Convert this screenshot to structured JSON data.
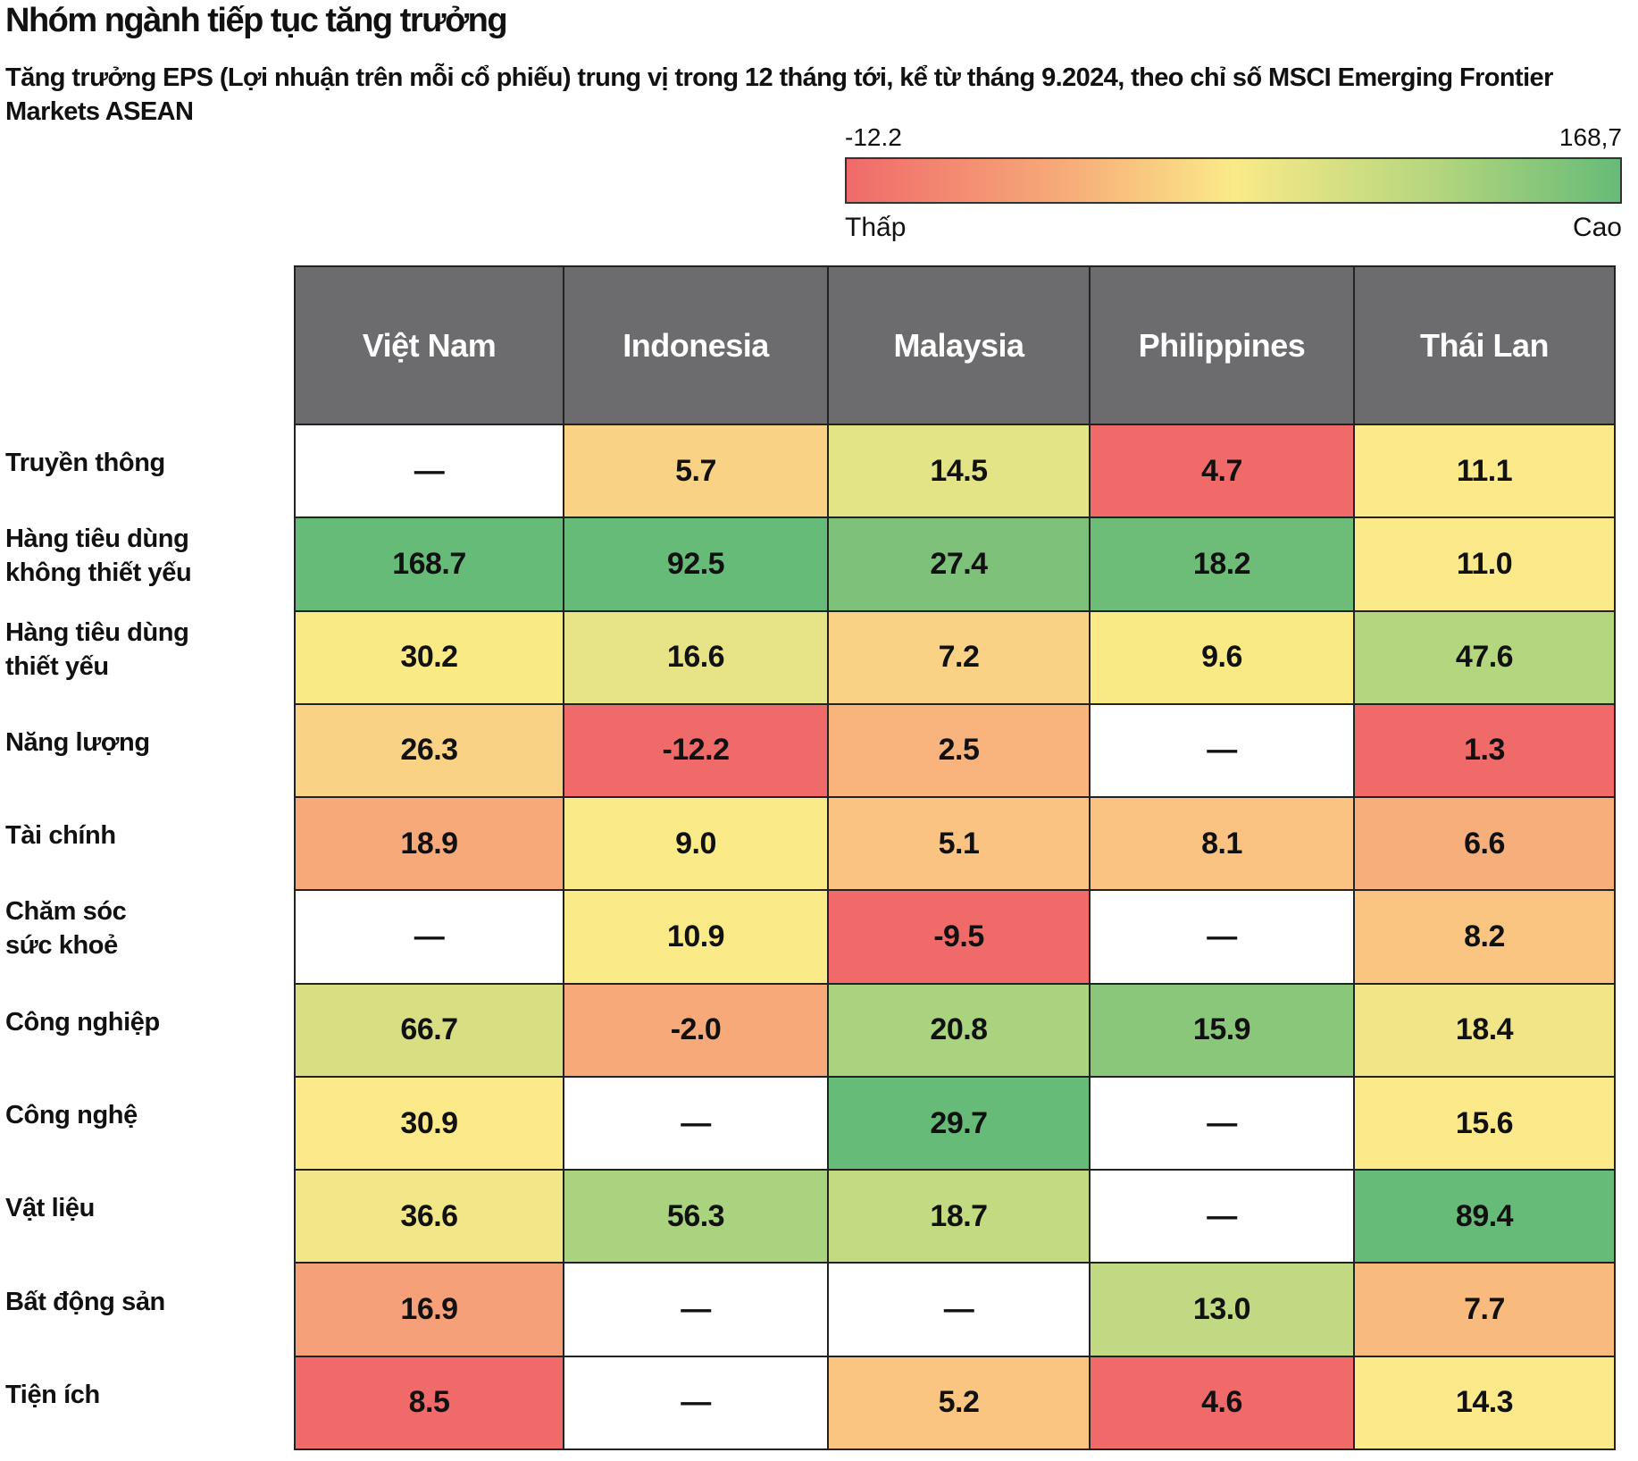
{
  "title": "Nhóm ngành tiếp tục tăng trưởng",
  "subtitle": "Tăng trưởng EPS (Lợi nhuận trên mỗi cổ phiếu) trung vị trong 12 tháng tới, kể từ tháng 9.2024, theo chỉ số MSCI Emerging Frontier Markets ASEAN",
  "legend": {
    "min_label": "-12.2",
    "max_label": "168,7",
    "low_label": "Thấp",
    "high_label": "Cao",
    "colors": [
      "#f06a6a",
      "#f7b07a",
      "#faea88",
      "#b8d77e",
      "#66bb78"
    ]
  },
  "chart_data": {
    "type": "heatmap",
    "title": "Nhóm ngành tiếp tục tăng trưởng",
    "subtitle": "Tăng trưởng EPS (Lợi nhuận trên mỗi cổ phiếu) trung vị trong 12 tháng tới, kể từ tháng 9.2024, theo chỉ số MSCI Emerging Frontier Markets ASEAN",
    "columns": [
      "Việt Nam",
      "Indonesia",
      "Malaysia",
      "Philippines",
      "Thái Lan"
    ],
    "empty_symbol": "—",
    "rows": [
      {
        "label": "Truyền thông",
        "values": [
          null,
          5.7,
          14.5,
          4.7,
          11.1
        ],
        "colors": [
          "#ffffff",
          "#fad285",
          "#e3e485",
          "#f06a6a",
          "#fbe98a"
        ]
      },
      {
        "label": "Hàng tiêu dùng\nkhông thiết yếu",
        "values": [
          168.7,
          92.5,
          27.4,
          18.2,
          11.0
        ],
        "colors": [
          "#66bb78",
          "#66bb78",
          "#7ec17b",
          "#6dbd79",
          "#fbe98a"
        ]
      },
      {
        "label": "Hàng tiêu dùng\nthiết yếu",
        "values": [
          30.2,
          16.6,
          7.2,
          9.6,
          47.6
        ],
        "colors": [
          "#f9ea86",
          "#e6e486",
          "#fad285",
          "#f9ea86",
          "#b4d67f"
        ]
      },
      {
        "label": "Năng lượng",
        "values": [
          26.3,
          -12.2,
          2.5,
          null,
          1.3
        ],
        "colors": [
          "#fad285",
          "#f06a6a",
          "#f8b47c",
          "#ffffff",
          "#f06a6a"
        ]
      },
      {
        "label": "Tài chính",
        "values": [
          18.9,
          9.0,
          5.1,
          8.1,
          6.6
        ],
        "colors": [
          "#f7a97a",
          "#faea88",
          "#fac382",
          "#fac382",
          "#f6ae7a"
        ]
      },
      {
        "label": "Chăm sóc\nsức khoẻ",
        "values": [
          null,
          10.9,
          -9.5,
          null,
          8.2
        ],
        "colors": [
          "#ffffff",
          "#faea88",
          "#f06a6a",
          "#ffffff",
          "#f9c580"
        ]
      },
      {
        "label": "Công nghiệp",
        "values": [
          66.7,
          -2.0,
          20.8,
          15.9,
          18.4
        ],
        "colors": [
          "#d7df82",
          "#f7a97a",
          "#a9d37f",
          "#8bc77b",
          "#f0e688"
        ]
      },
      {
        "label": "Công nghệ",
        "values": [
          30.9,
          null,
          29.7,
          null,
          15.6
        ],
        "colors": [
          "#fbe98a",
          "#ffffff",
          "#66bb78",
          "#ffffff",
          "#fbe98a"
        ]
      },
      {
        "label": "Vật liệu",
        "values": [
          36.6,
          56.3,
          18.7,
          null,
          89.4
        ],
        "colors": [
          "#f2e788",
          "#a9d37f",
          "#c2da80",
          "#ffffff",
          "#66bb78"
        ]
      },
      {
        "label": "Bất động sản",
        "values": [
          16.9,
          null,
          null,
          13.0,
          7.7
        ],
        "colors": [
          "#f6a079",
          "#ffffff",
          "#ffffff",
          "#c0d982",
          "#f9bb7d"
        ]
      },
      {
        "label": "Tiện ích",
        "values": [
          8.5,
          null,
          5.2,
          4.6,
          14.3
        ],
        "colors": [
          "#f06a6a",
          "#ffffff",
          "#f9c580",
          "#f06a6a",
          "#fbe98a"
        ]
      }
    ]
  }
}
